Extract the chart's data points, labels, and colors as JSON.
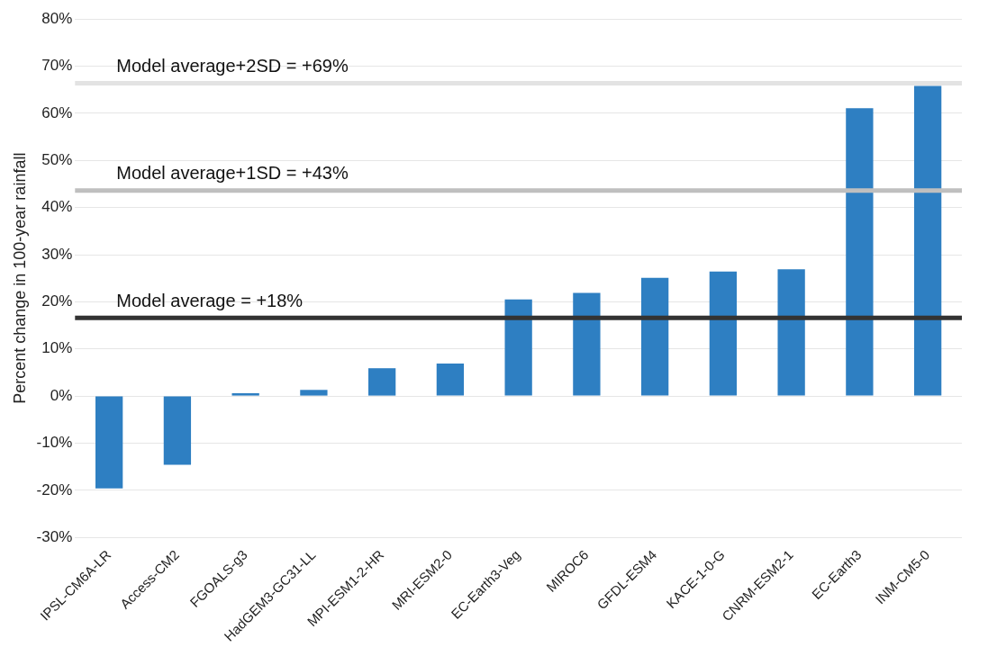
{
  "chart_data": {
    "type": "bar",
    "ylabel": "Percent change in 100-year rainfall",
    "categories": [
      "IPSL-CM6A-LR",
      "Access-CM2",
      "FGOALS-g3",
      "HadGEM3-GC31-LL",
      "MPI-ESM1-2-HR",
      "MRI-ESM2-0",
      "EC-Earth3-Veg",
      "MIROC6",
      "GFDL-ESM4",
      "KACE-1-0-G",
      "CNRM-ESM2-1",
      "EC-Earth3",
      "INM-CM5-0"
    ],
    "values": [
      -19.6,
      -14.6,
      0.6,
      1.3,
      5.9,
      6.9,
      20.5,
      21.9,
      25.1,
      26.4,
      26.9,
      61.1,
      65.8
    ],
    "color": "#2e7fc2",
    "ylim": [
      -30,
      80
    ],
    "yticks": [
      {
        "value": -30,
        "label": "-30%"
      },
      {
        "value": -20,
        "label": "-20%"
      },
      {
        "value": -10,
        "label": "-10%"
      },
      {
        "value": 0,
        "label": "0%"
      },
      {
        "value": 10,
        "label": "10%"
      },
      {
        "value": 20,
        "label": "20%"
      },
      {
        "value": 30,
        "label": "30%"
      },
      {
        "value": 40,
        "label": "40%"
      },
      {
        "value": 50,
        "label": "50%"
      },
      {
        "value": 60,
        "label": "60%"
      },
      {
        "value": 70,
        "label": "70%"
      },
      {
        "value": 80,
        "label": "80%"
      }
    ],
    "grid": "y",
    "legend": false,
    "ref_lines": [
      {
        "axis": "y",
        "value": 16.6,
        "label": "Model average = +18%",
        "color": "#333333"
      },
      {
        "axis": "y",
        "value": 43.6,
        "label": "Model average+1SD = +43%",
        "color": "#bfbfbf"
      },
      {
        "axis": "y",
        "value": 66.4,
        "label": "Model average+2SD = +69%",
        "color": "#e3e3e3"
      }
    ]
  }
}
